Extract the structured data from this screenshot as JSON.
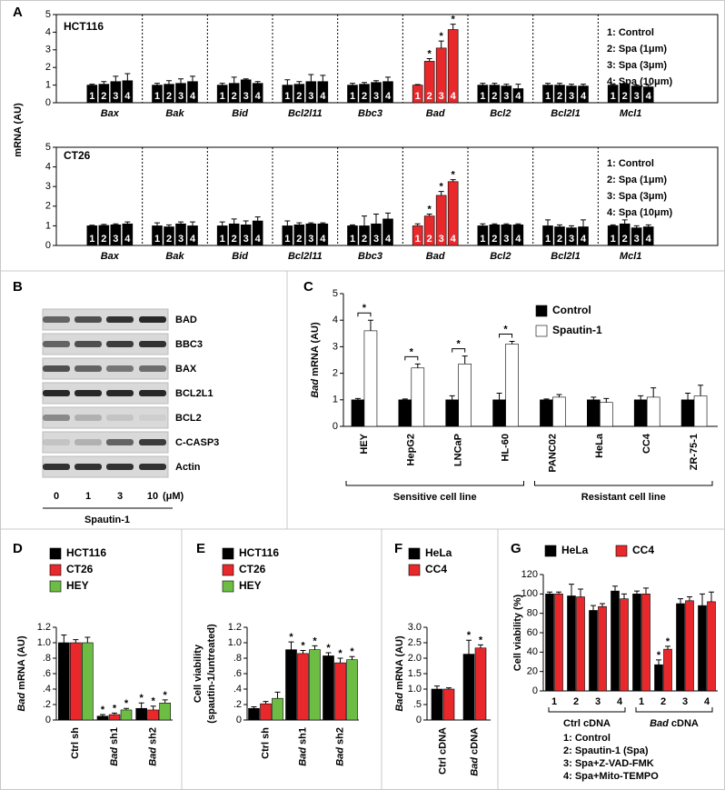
{
  "panel_labels": [
    "A",
    "B",
    "C",
    "D",
    "E",
    "F",
    "G"
  ],
  "blot": {
    "proteins": [
      "BAD",
      "BBC3",
      "BAX",
      "BCL2L1",
      "BCL2",
      "C-CASP3",
      "Actin"
    ],
    "doses": [
      "0",
      "1",
      "3",
      "10"
    ],
    "unit": "(μM)",
    "treatment": "Spautin-1"
  },
  "chart_data": [
    {
      "type": "bar",
      "title": "HCT116",
      "ylabel": "mRNA (AU)",
      "categories": [
        "Bax",
        "Bak",
        "Bid",
        "Bcl2l11",
        "Bbc3",
        "Bad",
        "Bcl2",
        "Bcl2l1",
        "Mcl1"
      ],
      "ylim": [
        0,
        5
      ],
      "yticks": [
        0,
        1,
        2,
        3,
        4,
        5
      ],
      "color": "#000000",
      "highlight": {
        "category": "Bad",
        "color": "#e8282b"
      },
      "series": [
        {
          "name": "1: Control",
          "short": "1",
          "values": [
            1.0,
            1.0,
            1.0,
            1.0,
            1.0,
            1.0,
            1.0,
            1.0,
            1.0
          ],
          "errors": [
            0.05,
            0.1,
            0.1,
            0.3,
            0.1,
            0.03,
            0.1,
            0.1,
            0.05
          ],
          "markers": [
            null,
            null,
            null,
            null,
            null,
            null,
            null,
            null,
            null
          ]
        },
        {
          "name": "2: Spa (1μm)",
          "short": "2",
          "values": [
            1.05,
            1.05,
            1.1,
            1.05,
            1.05,
            2.35,
            1.0,
            1.0,
            1.05
          ],
          "errors": [
            0.15,
            0.2,
            0.35,
            0.15,
            0.1,
            0.15,
            0.1,
            0.1,
            0.05
          ],
          "markers": [
            null,
            null,
            null,
            null,
            null,
            "*",
            null,
            null,
            null
          ]
        },
        {
          "name": "3: Spa (3μm)",
          "short": "3",
          "values": [
            1.2,
            1.1,
            1.3,
            1.2,
            1.15,
            3.1,
            0.95,
            0.95,
            0.95
          ],
          "errors": [
            0.3,
            0.25,
            0.05,
            0.4,
            0.1,
            0.4,
            0.1,
            0.1,
            0.05
          ],
          "markers": [
            null,
            null,
            null,
            null,
            null,
            "*",
            null,
            null,
            null
          ]
        },
        {
          "name": "4: Spa (10μm)",
          "short": "4",
          "values": [
            1.25,
            1.2,
            1.1,
            1.2,
            1.2,
            4.15,
            0.8,
            0.95,
            0.9
          ],
          "errors": [
            0.4,
            0.3,
            0.1,
            0.35,
            0.25,
            0.3,
            0.25,
            0.1,
            0.1
          ],
          "markers": [
            null,
            null,
            null,
            null,
            null,
            "*",
            null,
            null,
            null
          ]
        }
      ]
    },
    {
      "type": "bar",
      "title": "CT26",
      "categories": [
        "Bax",
        "Bak",
        "Bid",
        "Bcl2l11",
        "Bbc3",
        "Bad",
        "Bcl2",
        "Bcl2l1",
        "Mcl1"
      ],
      "ylim": [
        0,
        5
      ],
      "yticks": [
        0,
        1,
        2,
        3,
        4,
        5
      ],
      "color": "#000000",
      "highlight": {
        "category": "Bad",
        "color": "#e8282b"
      },
      "series": [
        {
          "name": "1: Control",
          "short": "1",
          "values": [
            1.0,
            1.0,
            1.0,
            1.0,
            1.0,
            1.0,
            1.0,
            1.0,
            1.0
          ],
          "errors": [
            0.03,
            0.15,
            0.2,
            0.25,
            0.05,
            0.1,
            0.1,
            0.3,
            0.05
          ],
          "markers": [
            null,
            null,
            null,
            null,
            null,
            null,
            null,
            null,
            null
          ]
        },
        {
          "name": "2: Spa (1μm)",
          "short": "2",
          "values": [
            1.02,
            0.95,
            1.1,
            1.05,
            1.0,
            1.5,
            1.05,
            0.95,
            1.1
          ],
          "errors": [
            0.05,
            0.1,
            0.25,
            0.1,
            0.5,
            0.1,
            0.05,
            0.1,
            0.2
          ],
          "markers": [
            null,
            null,
            null,
            null,
            null,
            "*",
            null,
            null,
            null
          ]
        },
        {
          "name": "3: Spa (3μm)",
          "short": "3",
          "values": [
            1.05,
            1.1,
            1.05,
            1.1,
            1.1,
            2.55,
            1.05,
            0.9,
            0.9
          ],
          "errors": [
            0.05,
            0.1,
            0.2,
            0.05,
            0.5,
            0.2,
            0.05,
            0.1,
            0.1
          ],
          "markers": [
            null,
            null,
            null,
            null,
            null,
            "*",
            null,
            null,
            null
          ]
        },
        {
          "name": "4: Spa (10μm)",
          "short": "4",
          "values": [
            1.1,
            1.0,
            1.25,
            1.1,
            1.35,
            3.25,
            1.05,
            0.95,
            0.95
          ],
          "errors": [
            0.1,
            0.2,
            0.2,
            0.05,
            0.3,
            0.1,
            0.05,
            0.35,
            0.1
          ],
          "markers": [
            null,
            null,
            null,
            null,
            null,
            "*",
            null,
            null,
            null
          ]
        }
      ]
    },
    {
      "type": "bar",
      "ylabel": [
        {
          "text": "Bad",
          "italic": true
        },
        {
          "text": " mRNA (AU)"
        }
      ],
      "categories": [
        "HEY",
        "HepG2",
        "LNCaP",
        "HL-60",
        "PANC02",
        "HeLa",
        "CC4",
        "ZR-75-1"
      ],
      "ylim": [
        0,
        5
      ],
      "yticks": [
        0,
        1,
        2,
        3,
        4,
        5
      ],
      "brackets": true,
      "groups": [
        {
          "label": "Sensitive cell line",
          "count": 4
        },
        {
          "label": "Resistant cell line",
          "count": 4
        }
      ],
      "series": [
        {
          "name": "Control",
          "color": "#000000",
          "values": [
            1.0,
            1.0,
            1.0,
            1.0,
            1.0,
            1.0,
            1.0,
            1.0
          ],
          "errors": [
            0.05,
            0.03,
            0.15,
            0.25,
            0.03,
            0.1,
            0.15,
            0.25
          ],
          "markers": [
            null,
            null,
            null,
            null,
            null,
            null,
            null,
            null
          ]
        },
        {
          "name": "Spautin-1",
          "color": "#ffffff",
          "values": [
            3.6,
            2.2,
            2.35,
            3.1,
            1.1,
            0.9,
            1.1,
            1.15
          ],
          "errors": [
            0.4,
            0.15,
            0.3,
            0.1,
            0.1,
            0.15,
            0.35,
            0.4
          ],
          "markers": [
            "*",
            "*",
            "*",
            "*",
            null,
            null,
            null,
            null
          ]
        }
      ]
    },
    {
      "type": "bar",
      "ylabel": [
        {
          "text": "Bad",
          "italic": true
        },
        {
          "text": " mRNA (AU)"
        }
      ],
      "categories": [
        "Ctrl sh",
        [
          {
            "text": "Bad",
            "italic": true
          },
          {
            "text": " sh1"
          }
        ],
        [
          {
            "text": "Bad",
            "italic": true
          },
          {
            "text": " sh2"
          }
        ]
      ],
      "ylim": [
        0,
        1.2
      ],
      "yticks": [
        0,
        {
          "value": 0.2,
          "label": ".2"
        },
        {
          "value": 0.4,
          "label": ".4"
        },
        {
          "value": 0.6,
          "label": ".6"
        },
        {
          "value": 0.8,
          "label": ".8"
        },
        {
          "value": 1,
          "label": "1.0"
        },
        1.2
      ],
      "series": [
        {
          "name": "HCT116",
          "color": "#000000",
          "values": [
            1.0,
            0.05,
            0.15
          ],
          "errors": [
            0.1,
            0.02,
            0.07
          ],
          "markers": [
            null,
            "*",
            "*"
          ]
        },
        {
          "name": "CT26",
          "color": "#e8282b",
          "values": [
            1.0,
            0.07,
            0.13
          ],
          "errors": [
            0.04,
            0.02,
            0.05
          ],
          "markers": [
            null,
            "*",
            "*"
          ]
        },
        {
          "name": "HEY",
          "color": "#6dbd45",
          "values": [
            1.0,
            0.13,
            0.22
          ],
          "errors": [
            0.07,
            0.02,
            0.04
          ],
          "markers": [
            null,
            "*",
            "*"
          ]
        }
      ]
    },
    {
      "type": "bar",
      "ylabel": "Cell viability",
      "ylabel2": "(spautin-1/untreated)",
      "categories": [
        "Ctrl sh",
        [
          {
            "text": "Bad",
            "italic": true
          },
          {
            "text": " sh1"
          }
        ],
        [
          {
            "text": "Bad",
            "italic": true
          },
          {
            "text": " sh2"
          }
        ]
      ],
      "ylim": [
        0,
        1.2
      ],
      "yticks": [
        0,
        {
          "value": 0.2,
          "label": ".2"
        },
        {
          "value": 0.4,
          "label": ".4"
        },
        {
          "value": 0.6,
          "label": ".6"
        },
        {
          "value": 0.8,
          "label": ".8"
        },
        {
          "value": 1,
          "label": "1.0"
        },
        1.2
      ],
      "series": [
        {
          "name": "HCT116",
          "color": "#000000",
          "values": [
            0.15,
            0.91,
            0.83
          ],
          "errors": [
            0.02,
            0.1,
            0.04
          ],
          "markers": [
            null,
            "*",
            "*"
          ]
        },
        {
          "name": "CT26",
          "color": "#e8282b",
          "values": [
            0.21,
            0.86,
            0.74
          ],
          "errors": [
            0.03,
            0.04,
            0.06
          ],
          "markers": [
            null,
            "*",
            "*"
          ]
        },
        {
          "name": "HEY",
          "color": "#6dbd45",
          "values": [
            0.28,
            0.91,
            0.78
          ],
          "errors": [
            0.08,
            0.05,
            0.04
          ],
          "markers": [
            null,
            "*",
            "*"
          ]
        }
      ]
    },
    {
      "type": "bar",
      "ylabel": [
        {
          "text": "Bad",
          "italic": true
        },
        {
          "text": " mRNA (AU)"
        }
      ],
      "categories": [
        "Ctrl cDNA",
        [
          {
            "text": "Bad",
            "italic": true
          },
          {
            "text": " cDNA"
          }
        ]
      ],
      "ylim": [
        0,
        3
      ],
      "yticks": [
        0,
        {
          "value": 0.5,
          "label": ".5"
        },
        {
          "value": 1,
          "label": "1.0"
        },
        1.5,
        {
          "value": 2,
          "label": "2.0"
        },
        2.5,
        {
          "value": 3,
          "label": "3.0"
        }
      ],
      "series": [
        {
          "name": "HeLa",
          "color": "#000000",
          "values": [
            1.0,
            2.13
          ],
          "errors": [
            0.1,
            0.45
          ],
          "markers": [
            null,
            "*"
          ]
        },
        {
          "name": "CC4",
          "color": "#e8282b",
          "values": [
            1.0,
            2.33
          ],
          "errors": [
            0.04,
            0.1
          ],
          "markers": [
            null,
            "*"
          ]
        }
      ]
    },
    {
      "type": "bar",
      "ylabel": "Cell viability (%)",
      "categories": [
        "1",
        "2",
        "3",
        "4",
        "1",
        "2",
        "3",
        "4"
      ],
      "groups": [
        {
          "label": "Ctrl cDNA",
          "count": 4
        },
        {
          "label": [
            {
              "text": "Bad",
              "italic": true
            },
            {
              "text": " cDNA"
            }
          ],
          "count": 4
        }
      ],
      "ylim": [
        0,
        120
      ],
      "yticks": [
        0,
        20,
        40,
        60,
        80,
        100,
        120
      ],
      "notes": [
        "1: Control",
        "2: Spautin-1 (Spa)",
        "3: Spa+Z-VAD-FMK",
        "4: Spa+Mito-TEMPO"
      ],
      "series": [
        {
          "name": "HeLa",
          "color": "#000000",
          "values": [
            100,
            98,
            83,
            103,
            100,
            27,
            90,
            88
          ],
          "errors": [
            2,
            12,
            5,
            5,
            3,
            5,
            5,
            12
          ],
          "markers": [
            null,
            null,
            null,
            null,
            null,
            "*",
            null,
            null
          ]
        },
        {
          "name": "CC4",
          "color": "#e8282b",
          "values": [
            100,
            97,
            87,
            95,
            100,
            43,
            93,
            92
          ],
          "errors": [
            2,
            8,
            3,
            5,
            6,
            3,
            4,
            10
          ],
          "markers": [
            null,
            null,
            null,
            null,
            null,
            "*",
            null,
            null
          ]
        }
      ]
    }
  ]
}
